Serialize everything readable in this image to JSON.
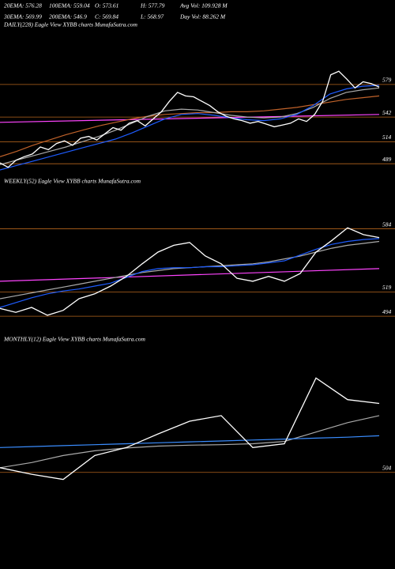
{
  "chart_data": [
    {
      "type": "line",
      "title": "DAILY(228) Eagle   View  XYBB charts MunafaSutra.com",
      "annotations": [
        "20EMA: 576.28",
        "100EMA: 559.04",
        "O: 573.61",
        "H: 577.79",
        "Avg Vol: 109.928 M",
        "30EMA: 569.99",
        "200EMA: 546.9",
        "C: 569.84",
        "L: 568.97",
        "Day Vol: 88.262 M"
      ],
      "ylim": [
        482,
        639
      ],
      "yticks": [
        579,
        542,
        514,
        489
      ],
      "grid": true,
      "grid_color": "#b5651d",
      "series": [
        {
          "color": "#ff44ff",
          "values": [
            536,
            545
          ]
        },
        {
          "color": "#c0622a",
          "values": [
            497,
            503,
            510,
            516,
            522,
            527,
            532,
            536,
            540,
            543,
            545,
            546,
            547,
            547,
            548,
            548,
            549,
            551,
            553,
            556,
            559,
            562,
            564,
            566
          ]
        },
        {
          "color": "#aaaaaa",
          "values": [
            488,
            493,
            498,
            503,
            508,
            514,
            520,
            527,
            535,
            543,
            549,
            551,
            550,
            547,
            544,
            542,
            541,
            542,
            546,
            553,
            563,
            570,
            573,
            575
          ]
        },
        {
          "color": "#1e5cff",
          "values": [
            482,
            487,
            492,
            497,
            502,
            507,
            512,
            517,
            524,
            532,
            540,
            545,
            546,
            544,
            541,
            539,
            538,
            540,
            545,
            555,
            568,
            574,
            577,
            578
          ]
        },
        {
          "color": "#ffffff",
          "values": [
            490,
            485,
            493,
            497,
            500,
            508,
            505,
            512,
            515,
            510,
            518,
            520,
            516,
            523,
            530,
            527,
            535,
            538,
            532,
            540,
            548,
            560,
            570,
            566,
            565,
            560,
            555,
            548,
            543,
            540,
            538,
            535,
            537,
            534,
            531,
            533,
            535,
            540,
            537,
            545,
            560,
            590,
            594,
            585,
            575,
            582,
            580,
            576
          ]
        }
      ]
    },
    {
      "type": "line",
      "title": "WEEKLY(52) Eagle   View  XYBB charts MunafaSutra.com",
      "ylim": [
        490,
        626
      ],
      "yticks": [
        584,
        519,
        494
      ],
      "grid": true,
      "grid_color": "#b5651d",
      "series": [
        {
          "color": "#ff44ff",
          "values": [
            530,
            543
          ]
        },
        {
          "color": "#aaaaaa",
          "values": [
            512,
            515,
            518,
            521,
            524,
            527,
            530,
            533,
            536,
            539,
            541,
            543,
            544,
            545,
            546,
            547,
            548,
            550,
            553,
            556,
            560,
            564,
            567,
            569,
            571
          ]
        },
        {
          "color": "#1e5cff",
          "values": [
            503,
            508,
            513,
            517,
            520,
            522,
            525,
            528,
            534,
            540,
            543,
            544,
            544,
            545,
            545,
            546,
            547,
            549,
            551,
            557,
            563,
            568,
            571,
            573,
            574
          ]
        },
        {
          "color": "#ffffff",
          "values": [
            502,
            498,
            503,
            495,
            500,
            512,
            517,
            525,
            535,
            548,
            560,
            567,
            570,
            556,
            548,
            533,
            530,
            535,
            530,
            538,
            560,
            572,
            585,
            578,
            575
          ]
        }
      ]
    },
    {
      "type": "line",
      "title": "MONTHLY(12) Eagle   View  XYBB charts MunafaSutra.com",
      "ylim": [
        480,
        773
      ],
      "yticks": [
        504
      ],
      "grid": true,
      "grid_color": "#b5651d",
      "series": [
        {
          "color": "#aaaaaa",
          "values": [
            514,
            525,
            540,
            550,
            556,
            560,
            562,
            563,
            565,
            570,
            590,
            610,
            625
          ]
        },
        {
          "color": "#3a8dff",
          "values": [
            557,
            559,
            561,
            563,
            565,
            567,
            569,
            571,
            573,
            575,
            577,
            579,
            582
          ]
        },
        {
          "color": "#ffffff",
          "values": [
            514,
            500,
            489,
            540,
            557,
            586,
            613,
            625,
            557,
            565,
            705,
            659,
            651
          ]
        }
      ]
    }
  ]
}
